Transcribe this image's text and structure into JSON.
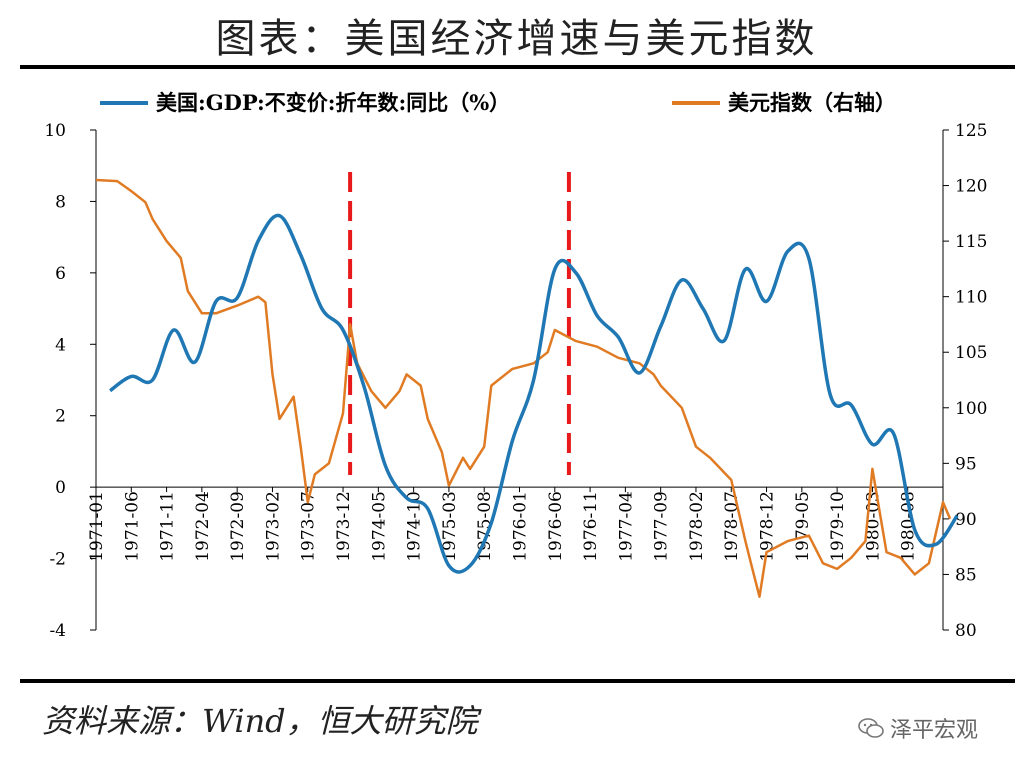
{
  "title": "图表：美国经济增速与美元指数",
  "source": "资料来源：Wind，恒大研究院",
  "watermark": "泽平宏观",
  "chart_data": {
    "type": "line",
    "left_axis": {
      "ticks": [
        -4,
        -2,
        0,
        2,
        4,
        6,
        8,
        10
      ],
      "ylim": [
        -4,
        10
      ]
    },
    "right_axis": {
      "ticks": [
        80,
        85,
        90,
        95,
        100,
        105,
        110,
        115,
        120,
        125
      ],
      "ylim": [
        80,
        125
      ]
    },
    "x_tick_labels": [
      "1971-01",
      "1971-06",
      "1971-11",
      "1972-04",
      "1972-09",
      "1973-02",
      "1973-07",
      "1973-12",
      "1974-05",
      "1974-10",
      "1975-03",
      "1975-08",
      "1976-01",
      "1976-06",
      "1976-11",
      "1977-04",
      "1977-09",
      "1978-02",
      "1978-07",
      "1978-12",
      "1979-05",
      "1979-10",
      "1980-03",
      "1980-08"
    ],
    "series": [
      {
        "name": "美国:GDP:不变价:折年数:同比（%）",
        "axis": "left",
        "color": "#1f77b4",
        "points": [
          [
            "1971-03",
            2.7
          ],
          [
            "1971-06",
            3.1
          ],
          [
            "1971-09",
            3.0
          ],
          [
            "1971-12",
            4.4
          ],
          [
            "1972-03",
            3.5
          ],
          [
            "1972-06",
            5.2
          ],
          [
            "1972-09",
            5.3
          ],
          [
            "1972-12",
            6.9
          ],
          [
            "1973-03",
            7.6
          ],
          [
            "1973-06",
            6.5
          ],
          [
            "1973-09",
            5.0
          ],
          [
            "1973-12",
            4.4
          ],
          [
            "1974-03",
            2.8
          ],
          [
            "1974-06",
            0.6
          ],
          [
            "1974-09",
            -0.3
          ],
          [
            "1974-12",
            -0.6
          ],
          [
            "1975-03",
            -2.2
          ],
          [
            "1975-06",
            -2.2
          ],
          [
            "1975-09",
            -1.0
          ],
          [
            "1975-12",
            1.3
          ],
          [
            "1976-03",
            3.0
          ],
          [
            "1976-06",
            6.1
          ],
          [
            "1976-09",
            6.0
          ],
          [
            "1976-12",
            4.8
          ],
          [
            "1977-03",
            4.2
          ],
          [
            "1977-06",
            3.2
          ],
          [
            "1977-09",
            4.5
          ],
          [
            "1977-12",
            5.8
          ],
          [
            "1978-03",
            5.0
          ],
          [
            "1978-06",
            4.1
          ],
          [
            "1978-09",
            6.1
          ],
          [
            "1978-12",
            5.2
          ],
          [
            "1979-03",
            6.6
          ],
          [
            "1979-06",
            6.4
          ],
          [
            "1979-09",
            2.6
          ],
          [
            "1979-12",
            2.3
          ],
          [
            "1980-03",
            1.2
          ],
          [
            "1980-06",
            1.5
          ],
          [
            "1980-09",
            -1.2
          ],
          [
            "1980-12",
            -1.6
          ],
          [
            "1981-03",
            -0.8
          ]
        ]
      },
      {
        "name": "美元指数（右轴）",
        "axis": "right",
        "color": "#e07b24",
        "points": [
          [
            "1971-01",
            120.5
          ],
          [
            "1971-04",
            120.4
          ],
          [
            "1971-06",
            119.5
          ],
          [
            "1971-08",
            118.5
          ],
          [
            "1971-09",
            117.0
          ],
          [
            "1971-11",
            115.0
          ],
          [
            "1972-01",
            113.5
          ],
          [
            "1972-02",
            110.5
          ],
          [
            "1972-04",
            108.5
          ],
          [
            "1972-06",
            108.5
          ],
          [
            "1972-09",
            109.2
          ],
          [
            "1972-12",
            110.0
          ],
          [
            "1973-01",
            109.5
          ],
          [
            "1973-02",
            103.0
          ],
          [
            "1973-03",
            99.0
          ],
          [
            "1973-05",
            101.0
          ],
          [
            "1973-06",
            96.5
          ],
          [
            "1973-07",
            91.5
          ],
          [
            "1973-08",
            94.0
          ],
          [
            "1973-10",
            95.0
          ],
          [
            "1973-12",
            99.5
          ],
          [
            "1974-01",
            107.5
          ],
          [
            "1974-02",
            104.0
          ],
          [
            "1974-04",
            101.5
          ],
          [
            "1974-06",
            100.0
          ],
          [
            "1974-08",
            101.5
          ],
          [
            "1974-09",
            103.0
          ],
          [
            "1974-11",
            102.0
          ],
          [
            "1974-12",
            99.0
          ],
          [
            "1975-02",
            96.0
          ],
          [
            "1975-03",
            93.0
          ],
          [
            "1975-05",
            95.5
          ],
          [
            "1975-06",
            94.5
          ],
          [
            "1975-08",
            96.5
          ],
          [
            "1975-09",
            102.0
          ],
          [
            "1975-12",
            103.5
          ],
          [
            "1976-03",
            104.0
          ],
          [
            "1976-05",
            105.0
          ],
          [
            "1976-06",
            107.0
          ],
          [
            "1976-09",
            106.0
          ],
          [
            "1976-12",
            105.5
          ],
          [
            "1977-03",
            104.5
          ],
          [
            "1977-06",
            104.0
          ],
          [
            "1977-08",
            103.0
          ],
          [
            "1977-09",
            102.0
          ],
          [
            "1977-12",
            100.0
          ],
          [
            "1978-02",
            96.5
          ],
          [
            "1978-04",
            95.5
          ],
          [
            "1978-07",
            93.5
          ],
          [
            "1978-09",
            88.0
          ],
          [
            "1978-10",
            85.5
          ],
          [
            "1978-11",
            83.0
          ],
          [
            "1978-12",
            87.0
          ],
          [
            "1979-03",
            88.0
          ],
          [
            "1979-06",
            88.5
          ],
          [
            "1979-08",
            86.0
          ],
          [
            "1979-10",
            85.5
          ],
          [
            "1979-12",
            86.5
          ],
          [
            "1980-02",
            88.0
          ],
          [
            "1980-03",
            94.5
          ],
          [
            "1980-05",
            87.0
          ],
          [
            "1980-07",
            86.5
          ],
          [
            "1980-09",
            85.0
          ],
          [
            "1980-11",
            86.0
          ],
          [
            "1981-01",
            91.5
          ],
          [
            "1981-02",
            90.0
          ]
        ]
      }
    ],
    "annotations": [
      {
        "type": "vertical-dashed-line",
        "x": "1974-01",
        "color": "#e8191a"
      },
      {
        "type": "vertical-dashed-line",
        "x": "1976-08",
        "color": "#e8191a"
      }
    ],
    "legend_placement": "top"
  }
}
